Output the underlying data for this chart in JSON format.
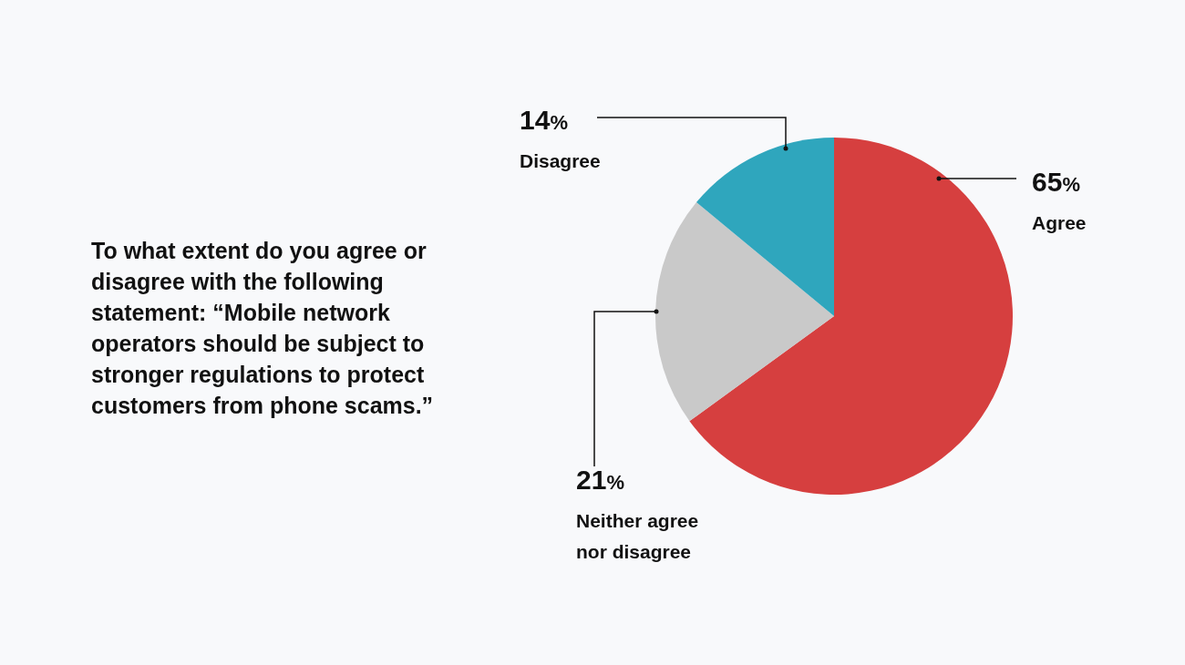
{
  "chart_data": {
    "type": "pie",
    "title": "To what extent do you agree or disagree with the following statement: “Mobile network operators should be subject to stronger regulations to protect customers from phone scams.”",
    "categories": [
      "Agree",
      "Neither agree nor disagree",
      "Disagree"
    ],
    "values": [
      65,
      21,
      14
    ],
    "value_labels": [
      "65%",
      "21%",
      "14%"
    ],
    "colors": [
      "#d63f3f",
      "#c9c9c9",
      "#2fa6bd"
    ]
  }
}
